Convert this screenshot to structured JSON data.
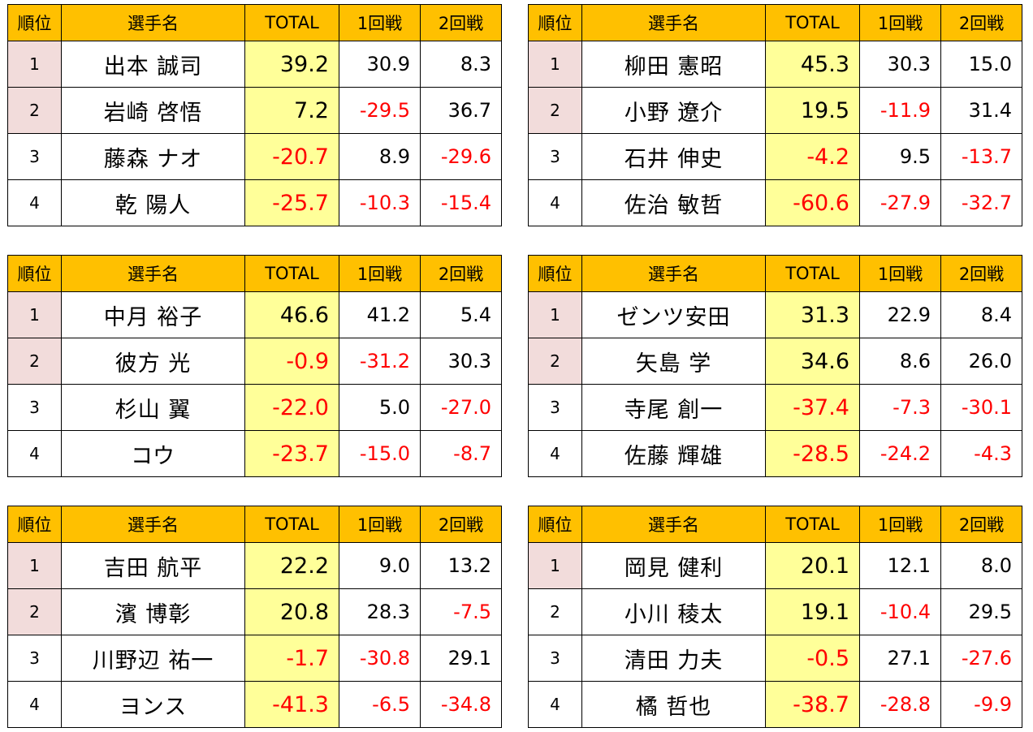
{
  "headers": {
    "rank": "順位",
    "name": "選手名",
    "total": "TOTAL",
    "round1": "1回戦",
    "round2": "2回戦"
  },
  "tables": [
    {
      "rows": [
        {
          "rank": "1",
          "name": "出本 誠司",
          "total": "39.2",
          "r1": "30.9",
          "r2": "8.3",
          "highlight": true
        },
        {
          "rank": "2",
          "name": "岩崎 啓悟",
          "total": "7.2",
          "r1": "-29.5",
          "r2": "36.7",
          "highlight": true
        },
        {
          "rank": "3",
          "name": "藤森 ナオ",
          "total": "-20.7",
          "r1": "8.9",
          "r2": "-29.6",
          "highlight": false
        },
        {
          "rank": "4",
          "name": "乾 陽人",
          "total": "-25.7",
          "r1": "-10.3",
          "r2": "-15.4",
          "highlight": false
        }
      ]
    },
    {
      "rows": [
        {
          "rank": "1",
          "name": "柳田 憲昭",
          "total": "45.3",
          "r1": "30.3",
          "r2": "15.0",
          "highlight": true
        },
        {
          "rank": "2",
          "name": "小野 遼介",
          "total": "19.5",
          "r1": "-11.9",
          "r2": "31.4",
          "highlight": true
        },
        {
          "rank": "3",
          "name": "石井 伸史",
          "total": "-4.2",
          "r1": "9.5",
          "r2": "-13.7",
          "highlight": false
        },
        {
          "rank": "4",
          "name": "佐治 敏哲",
          "total": "-60.6",
          "r1": "-27.9",
          "r2": "-32.7",
          "highlight": false
        }
      ]
    },
    {
      "rows": [
        {
          "rank": "1",
          "name": "中月 裕子",
          "total": "46.6",
          "r1": "41.2",
          "r2": "5.4",
          "highlight": true
        },
        {
          "rank": "2",
          "name": "彼方 光",
          "total": "-0.9",
          "r1": "-31.2",
          "r2": "30.3",
          "highlight": true
        },
        {
          "rank": "3",
          "name": "杉山 翼",
          "total": "-22.0",
          "r1": "5.0",
          "r2": "-27.0",
          "highlight": false
        },
        {
          "rank": "4",
          "name": "コウ",
          "total": "-23.7",
          "r1": "-15.0",
          "r2": "-8.7",
          "highlight": false
        }
      ]
    },
    {
      "rows": [
        {
          "rank": "1",
          "name": "ゼンツ安田",
          "total": "31.3",
          "r1": "22.9",
          "r2": "8.4",
          "highlight": true
        },
        {
          "rank": "2",
          "name": "矢島 学",
          "total": "34.6",
          "r1": "8.6",
          "r2": "26.0",
          "highlight": true
        },
        {
          "rank": "3",
          "name": "寺尾 創一",
          "total": "-37.4",
          "r1": "-7.3",
          "r2": "-30.1",
          "highlight": false
        },
        {
          "rank": "4",
          "name": "佐藤 輝雄",
          "total": "-28.5",
          "r1": "-24.2",
          "r2": "-4.3",
          "highlight": false
        }
      ]
    },
    {
      "rows": [
        {
          "rank": "1",
          "name": "吉田 航平",
          "total": "22.2",
          "r1": "9.0",
          "r2": "13.2",
          "highlight": true
        },
        {
          "rank": "2",
          "name": "濱 博彰",
          "total": "20.8",
          "r1": "28.3",
          "r2": "-7.5",
          "highlight": true
        },
        {
          "rank": "3",
          "name": "川野辺 祐一",
          "total": "-1.7",
          "r1": "-30.8",
          "r2": "29.1",
          "highlight": false
        },
        {
          "rank": "4",
          "name": "ヨンス",
          "total": "-41.3",
          "r1": "-6.5",
          "r2": "-34.8",
          "highlight": false
        }
      ]
    },
    {
      "rows": [
        {
          "rank": "1",
          "name": "岡見 健利",
          "total": "20.1",
          "r1": "12.1",
          "r2": "8.0",
          "highlight": true
        },
        {
          "rank": "2",
          "name": "小川 稜太",
          "total": "19.1",
          "r1": "-10.4",
          "r2": "29.5",
          "highlight": false
        },
        {
          "rank": "3",
          "name": "清田 力夫",
          "total": "-0.5",
          "r1": "27.1",
          "r2": "-27.6",
          "highlight": false
        },
        {
          "rank": "4",
          "name": "橘 哲也",
          "total": "-38.7",
          "r1": "-28.8",
          "r2": "-9.9",
          "highlight": false
        }
      ]
    }
  ]
}
